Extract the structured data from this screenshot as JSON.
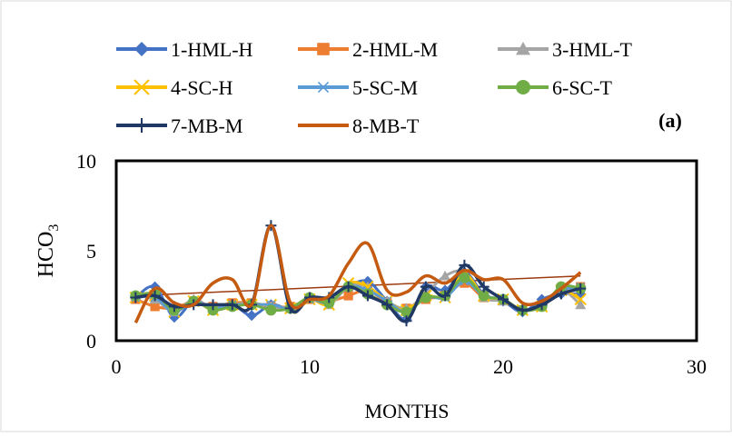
{
  "panel_label": "(a)",
  "chart_data": {
    "type": "line",
    "title": "",
    "xlabel": "MONTHS",
    "ylabel_main": "HCO",
    "ylabel_sub": "3",
    "xlim": [
      0,
      30
    ],
    "ylim": [
      0,
      10
    ],
    "xticks": [
      0,
      10,
      20,
      30
    ],
    "yticks": [
      0,
      5,
      10
    ],
    "grid": false,
    "legend_position": "top",
    "trendline": {
      "series": "8-MB-T",
      "x": [
        1,
        24
      ],
      "y": [
        2.5,
        3.6
      ],
      "color": "#9C3C0F"
    },
    "x": [
      1,
      2,
      3,
      4,
      5,
      6,
      7,
      8,
      9,
      10,
      11,
      12,
      13,
      14,
      15,
      16,
      17,
      18,
      19,
      20,
      21,
      22,
      23,
      24
    ],
    "series": [
      {
        "name": "1-HML-H",
        "color": "#4472C4",
        "marker": "diamond",
        "values": [
          2.4,
          3.0,
          1.3,
          2.2,
          1.8,
          2.0,
          1.4,
          2.0,
          1.8,
          2.4,
          2.1,
          3.0,
          3.3,
          2.2,
          1.2,
          3.0,
          2.8,
          3.8,
          2.6,
          2.2,
          1.6,
          2.3,
          2.6,
          2.6
        ]
      },
      {
        "name": "2-HML-M",
        "color": "#ED7D31",
        "marker": "square",
        "values": [
          2.3,
          1.9,
          1.8,
          2.2,
          1.9,
          2.1,
          2.1,
          1.9,
          1.9,
          2.3,
          2.2,
          2.5,
          2.8,
          2.1,
          1.8,
          2.3,
          2.5,
          3.2,
          2.4,
          2.3,
          1.7,
          1.9,
          2.8,
          3.0
        ]
      },
      {
        "name": "3-HML-T",
        "color": "#A5A5A5",
        "marker": "triangle",
        "values": [
          2.5,
          2.3,
          1.6,
          2.3,
          1.8,
          2.0,
          2.1,
          1.9,
          1.8,
          2.4,
          2.0,
          3.0,
          3.0,
          2.2,
          1.8,
          2.6,
          3.6,
          3.8,
          2.4,
          2.2,
          1.7,
          1.9,
          2.8,
          2.0
        ]
      },
      {
        "name": "4-SC-H",
        "color": "#FFC000",
        "marker": "x",
        "values": [
          2.4,
          2.5,
          1.6,
          2.2,
          1.7,
          2.0,
          2.0,
          2.0,
          1.8,
          2.3,
          2.0,
          3.2,
          3.0,
          2.2,
          1.7,
          2.5,
          2.4,
          3.7,
          2.5,
          2.3,
          1.7,
          1.9,
          2.8,
          2.3
        ]
      },
      {
        "name": "5-SC-M",
        "color": "#5B9BD5",
        "marker": "star",
        "values": [
          2.4,
          2.4,
          1.6,
          2.2,
          1.8,
          2.0,
          2.0,
          2.0,
          1.8,
          2.3,
          2.1,
          3.0,
          2.8,
          2.2,
          1.6,
          2.4,
          2.4,
          3.3,
          2.5,
          2.3,
          1.7,
          2.0,
          2.8,
          3.0
        ]
      },
      {
        "name": "6-SC-T",
        "color": "#70AD47",
        "marker": "circle",
        "values": [
          2.5,
          2.6,
          1.7,
          2.2,
          1.7,
          1.9,
          2.0,
          1.7,
          1.8,
          2.4,
          2.1,
          3.0,
          2.6,
          2.0,
          1.6,
          2.4,
          2.5,
          3.5,
          2.5,
          2.3,
          1.7,
          1.9,
          3.0,
          2.9
        ]
      },
      {
        "name": "7-MB-M",
        "color": "#203864",
        "marker": "plus",
        "values": [
          2.4,
          2.5,
          1.9,
          2.0,
          2.0,
          2.0,
          2.0,
          6.4,
          1.8,
          2.4,
          2.4,
          3.0,
          2.5,
          2.0,
          1.1,
          3.0,
          2.5,
          4.2,
          3.0,
          2.3,
          1.7,
          2.0,
          2.6,
          2.9
        ]
      },
      {
        "name": "8-MB-T",
        "color": "#C55A11",
        "marker": "none",
        "values": [
          1.0,
          2.9,
          2.1,
          2.0,
          3.2,
          3.4,
          2.0,
          6.4,
          2.1,
          2.3,
          2.5,
          4.3,
          5.4,
          2.8,
          2.7,
          3.6,
          3.2,
          3.9,
          3.4,
          3.4,
          2.1,
          2.2,
          2.9,
          3.8
        ]
      }
    ]
  }
}
